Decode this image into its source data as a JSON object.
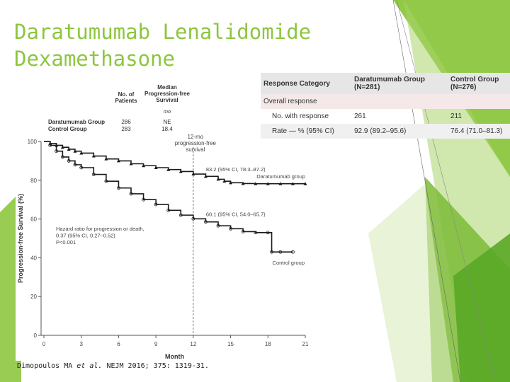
{
  "slide": {
    "title_line1": "Daratumumab Lenalidomide",
    "title_line2": "Dexamethasone",
    "citation_authors": "Dimopoulos MA ",
    "citation_etal": "et al.",
    "citation_journal": " NEJM 2016; 375: 1319-31.",
    "accent_color": "#8dc63f"
  },
  "response_table": {
    "headers": [
      "Response Category",
      "Daratumumab Group\n(N=281)",
      "Control Group\n(N=276)"
    ],
    "rows": [
      {
        "label": "Overall response",
        "dara": "",
        "control": "",
        "style": "overall"
      },
      {
        "label": "No. with response",
        "dara": "261",
        "control": "211",
        "style": "plain"
      },
      {
        "label": "Rate — % (95% CI)",
        "dara": "92.9 (89.2–95.6)",
        "control": "76.4 (71.0–81.3)",
        "style": "alt"
      }
    ]
  },
  "chart_data": {
    "type": "line",
    "title": "",
    "xlabel": "Month",
    "ylabel": "Progression-free Survival (%)",
    "xlim": [
      0,
      21
    ],
    "ylim": [
      0,
      100
    ],
    "x_ticks": [
      0,
      3,
      6,
      9,
      12,
      15,
      18,
      21
    ],
    "y_ticks": [
      0,
      20,
      40,
      60,
      80,
      100
    ],
    "grid": false,
    "legend_header": {
      "patients": "No. of\nPatients",
      "median": "Median\nProgression-free\nSurvival",
      "median_unit": "mo"
    },
    "legend_rows": [
      {
        "name": "Daratumumab Group",
        "patients": "286",
        "median": "NE"
      },
      {
        "name": "Control Group",
        "patients": "283",
        "median": "18.4"
      }
    ],
    "milestone_label": "12-mo\nprogression-free\nsurvival",
    "milestone_x": 12,
    "series": [
      {
        "name": "Daratumumab group",
        "color": "#1a1a1a",
        "x": [
          0,
          0.5,
          1,
          1.5,
          2,
          2.5,
          3,
          4,
          5,
          6,
          7,
          8,
          9,
          10,
          11,
          12,
          13,
          14,
          14.5,
          15,
          16,
          17,
          18,
          19,
          20,
          21
        ],
        "y": [
          100,
          99,
          98,
          97,
          96,
          95,
          94,
          92.5,
          91,
          90,
          88.5,
          87.5,
          86.5,
          85.5,
          84.5,
          83.2,
          82,
          80.5,
          79.5,
          78.7,
          78.3,
          78.2,
          78.2,
          78.2,
          78.2,
          78.2
        ],
        "annotation": "83.2 (95% CI, 78.3–87.2)",
        "end_label": "Daratumumab group"
      },
      {
        "name": "Control group",
        "color": "#1a1a1a",
        "x": [
          0,
          0.5,
          1,
          1.5,
          2,
          2.5,
          3,
          4,
          5,
          6,
          7,
          8,
          9,
          10,
          11,
          12,
          13,
          14,
          15,
          16,
          17,
          18,
          18.3,
          19,
          20
        ],
        "y": [
          100,
          98,
          95,
          92,
          90,
          88,
          86.5,
          83,
          79.5,
          76,
          73,
          70,
          67.5,
          64.5,
          62,
          60.1,
          58.5,
          56.5,
          55,
          53.5,
          53,
          53,
          43,
          43,
          43
        ],
        "annotation": "60.1 (95% CI, 54.0–65.7)",
        "end_label": "Control group"
      }
    ],
    "hazard_text": [
      "Hazard ratio for progression or death,",
      "0.37 (95% CI, 0.27–0.52)",
      "P<0.001"
    ]
  }
}
